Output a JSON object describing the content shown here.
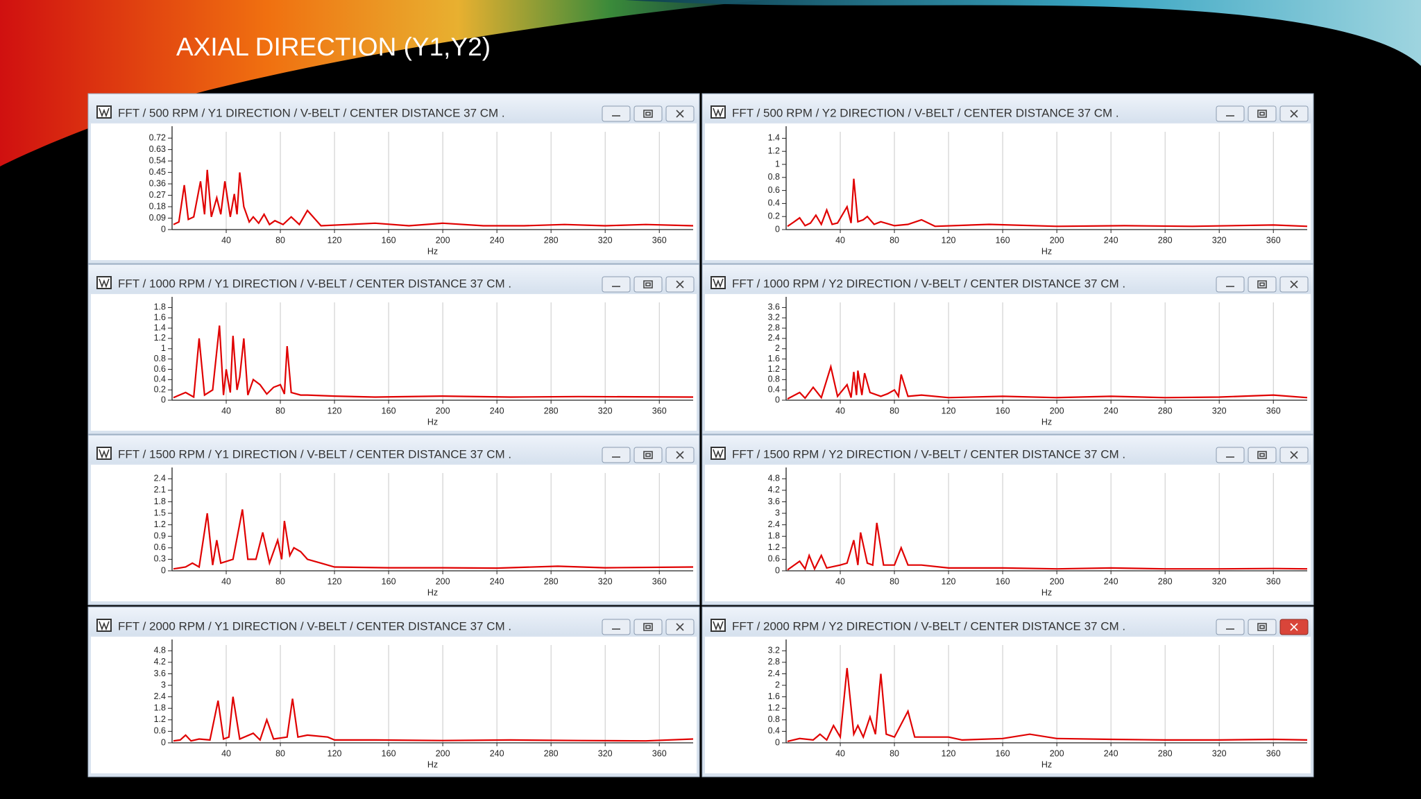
{
  "title": "AXIAL DIRECTION (Y1,Y2)",
  "chart_data": [
    {
      "type": "line",
      "title": "FFT / 500 RPM / Y1 DIRECTION / V-BELT / CENTER DISTANCE 37 CM .",
      "xlabel": "Hz",
      "color": "#e00000",
      "grid": true,
      "xlim": [
        0,
        385
      ],
      "xticks": [
        40,
        80,
        120,
        160,
        200,
        240,
        280,
        320,
        360
      ],
      "ylim": [
        0,
        0.77
      ],
      "yticks": [
        0,
        0.09,
        0.18,
        0.27,
        0.36,
        0.45,
        0.54,
        0.63,
        0.72
      ],
      "x": [
        1,
        5,
        9,
        12,
        16,
        21,
        24,
        26,
        29,
        33,
        36,
        39,
        43,
        46,
        48,
        50,
        53,
        57,
        60,
        64,
        68,
        72,
        76,
        82,
        88,
        94,
        100,
        110,
        130,
        150,
        175,
        200,
        230,
        260,
        290,
        320,
        350,
        385
      ],
      "values": [
        0.04,
        0.06,
        0.35,
        0.08,
        0.1,
        0.38,
        0.12,
        0.47,
        0.1,
        0.25,
        0.12,
        0.38,
        0.1,
        0.28,
        0.12,
        0.45,
        0.18,
        0.06,
        0.1,
        0.05,
        0.12,
        0.04,
        0.07,
        0.04,
        0.1,
        0.04,
        0.15,
        0.03,
        0.04,
        0.05,
        0.03,
        0.05,
        0.03,
        0.03,
        0.04,
        0.03,
        0.04,
        0.03
      ]
    },
    {
      "type": "line",
      "title": "FFT / 500 RPM / Y2 DIRECTION / V-BELT / CENTER DISTANCE 37 CM .",
      "xlabel": "Hz",
      "color": "#e00000",
      "grid": true,
      "xlim": [
        0,
        385
      ],
      "xticks": [
        40,
        80,
        120,
        160,
        200,
        240,
        280,
        320,
        360
      ],
      "ylim": [
        0,
        1.5
      ],
      "yticks": [
        0,
        0.2,
        0.4,
        0.6,
        0.8,
        1,
        1.2,
        1.4
      ],
      "x": [
        1,
        6,
        10,
        14,
        18,
        22,
        26,
        30,
        34,
        38,
        45,
        48,
        50,
        53,
        57,
        60,
        65,
        70,
        80,
        90,
        100,
        110,
        150,
        200,
        250,
        300,
        360,
        385
      ],
      "values": [
        0.05,
        0.12,
        0.18,
        0.06,
        0.1,
        0.22,
        0.08,
        0.3,
        0.08,
        0.1,
        0.35,
        0.1,
        0.78,
        0.12,
        0.15,
        0.2,
        0.08,
        0.12,
        0.06,
        0.08,
        0.15,
        0.05,
        0.08,
        0.05,
        0.06,
        0.05,
        0.07,
        0.05
      ]
    },
    {
      "type": "line",
      "title": "FFT / 1000 RPM / Y1 DIRECTION / V-BELT / CENTER DISTANCE 37 CM .",
      "xlabel": "Hz",
      "color": "#e00000",
      "grid": true,
      "xlim": [
        0,
        385
      ],
      "xticks": [
        40,
        80,
        120,
        160,
        200,
        240,
        280,
        320,
        360
      ],
      "ylim": [
        0,
        1.9
      ],
      "yticks": [
        0,
        0.2,
        0.4,
        0.6,
        0.8,
        1,
        1.2,
        1.4,
        1.6,
        1.8
      ],
      "x": [
        1,
        10,
        16,
        20,
        24,
        30,
        35,
        38,
        40,
        43,
        45,
        48,
        50,
        53,
        56,
        60,
        65,
        70,
        75,
        80,
        83,
        85,
        88,
        95,
        100,
        120,
        150,
        200,
        250,
        300,
        385
      ],
      "values": [
        0.05,
        0.15,
        0.06,
        1.2,
        0.1,
        0.2,
        1.45,
        0.1,
        0.6,
        0.15,
        1.25,
        0.2,
        0.45,
        1.2,
        0.1,
        0.4,
        0.3,
        0.12,
        0.25,
        0.3,
        0.12,
        1.05,
        0.15,
        0.1,
        0.1,
        0.08,
        0.06,
        0.08,
        0.06,
        0.07,
        0.06
      ]
    },
    {
      "type": "line",
      "title": "FFT / 1000 RPM / Y2 DIRECTION / V-BELT / CENTER DISTANCE 37 CM .",
      "xlabel": "Hz",
      "color": "#e00000",
      "grid": true,
      "xlim": [
        0,
        385
      ],
      "xticks": [
        40,
        80,
        120,
        160,
        200,
        240,
        280,
        320,
        360
      ],
      "ylim": [
        0,
        3.8
      ],
      "yticks": [
        0,
        0.4,
        0.8,
        1.2,
        1.6,
        2,
        2.4,
        2.8,
        3.2,
        3.6
      ],
      "x": [
        1,
        10,
        14,
        20,
        26,
        33,
        38,
        45,
        48,
        50,
        52,
        53,
        56,
        58,
        62,
        70,
        75,
        80,
        83,
        85,
        90,
        100,
        120,
        160,
        200,
        240,
        280,
        320,
        360,
        385
      ],
      "values": [
        0.05,
        0.3,
        0.08,
        0.5,
        0.1,
        1.3,
        0.15,
        0.6,
        0.1,
        1.1,
        0.2,
        1.15,
        0.2,
        1.05,
        0.3,
        0.15,
        0.25,
        0.4,
        0.15,
        1.0,
        0.15,
        0.2,
        0.1,
        0.15,
        0.1,
        0.15,
        0.1,
        0.12,
        0.2,
        0.1
      ]
    },
    {
      "type": "line",
      "title": "FFT / 1500 RPM / Y1 DIRECTION / V-BELT / CENTER DISTANCE 37 CM .",
      "xlabel": "Hz",
      "color": "#e00000",
      "grid": true,
      "xlim": [
        0,
        385
      ],
      "xticks": [
        40,
        80,
        120,
        160,
        200,
        240,
        280,
        320,
        360
      ],
      "ylim": [
        0,
        2.55
      ],
      "yticks": [
        0,
        0.3,
        0.6,
        0.9,
        1.2,
        1.5,
        1.8,
        2.1,
        2.4
      ],
      "x": [
        1,
        10,
        15,
        20,
        26,
        30,
        33,
        36,
        45,
        52,
        56,
        62,
        67,
        72,
        78,
        81,
        83,
        87,
        90,
        95,
        100,
        110,
        120,
        160,
        200,
        240,
        285,
        320,
        385
      ],
      "values": [
        0.05,
        0.1,
        0.2,
        0.1,
        1.5,
        0.15,
        0.8,
        0.2,
        0.3,
        1.6,
        0.3,
        0.3,
        1.0,
        0.2,
        0.8,
        0.3,
        1.3,
        0.4,
        0.6,
        0.5,
        0.3,
        0.2,
        0.1,
        0.08,
        0.08,
        0.07,
        0.12,
        0.08,
        0.1
      ]
    },
    {
      "type": "line",
      "title": "FFT / 1500 RPM / Y2 DIRECTION / V-BELT / CENTER DISTANCE 37 CM .",
      "xlabel": "Hz",
      "color": "#e00000",
      "grid": true,
      "xlim": [
        0,
        385
      ],
      "xticks": [
        40,
        80,
        120,
        160,
        200,
        240,
        280,
        320,
        360
      ],
      "ylim": [
        0,
        5.1
      ],
      "yticks": [
        0,
        0.6,
        1.2,
        1.8,
        2.4,
        3,
        3.6,
        4.2,
        4.8
      ],
      "x": [
        1,
        10,
        14,
        17,
        21,
        26,
        30,
        40,
        45,
        50,
        53,
        55,
        60,
        64,
        67,
        72,
        80,
        85,
        90,
        100,
        120,
        160,
        200,
        240,
        280,
        320,
        360,
        385
      ],
      "values": [
        0.05,
        0.5,
        0.1,
        0.8,
        0.1,
        0.8,
        0.15,
        0.3,
        0.4,
        1.6,
        0.3,
        2.0,
        0.4,
        0.3,
        2.5,
        0.3,
        0.3,
        1.2,
        0.3,
        0.3,
        0.15,
        0.15,
        0.1,
        0.15,
        0.1,
        0.1,
        0.12,
        0.1
      ]
    },
    {
      "type": "line",
      "title": "FFT / 2000 RPM / Y1 DIRECTION / V-BELT / CENTER DISTANCE 37 CM .",
      "xlabel": "Hz",
      "color": "#e00000",
      "grid": true,
      "xlim": [
        0,
        385
      ],
      "xticks": [
        40,
        80,
        120,
        160,
        200,
        240,
        280,
        320,
        360
      ],
      "ylim": [
        0,
        5.1
      ],
      "yticks": [
        0,
        0.6,
        1.2,
        1.8,
        2.4,
        3,
        3.6,
        4.2,
        4.8
      ],
      "x": [
        1,
        6,
        10,
        14,
        20,
        28,
        34,
        38,
        42,
        45,
        50,
        60,
        65,
        70,
        75,
        85,
        89,
        93,
        100,
        115,
        120,
        150,
        200,
        250,
        300,
        350,
        385
      ],
      "values": [
        0.1,
        0.15,
        0.4,
        0.1,
        0.2,
        0.15,
        2.2,
        0.2,
        0.3,
        2.4,
        0.2,
        0.5,
        0.15,
        1.2,
        0.2,
        0.3,
        2.3,
        0.3,
        0.4,
        0.3,
        0.15,
        0.15,
        0.12,
        0.15,
        0.12,
        0.1,
        0.2
      ]
    },
    {
      "type": "line",
      "title": "FFT / 2000 RPM / Y2 DIRECTION / V-BELT / CENTER DISTANCE 37 CM .",
      "xlabel": "Hz",
      "color": "#e00000",
      "grid": true,
      "xlim": [
        0,
        385
      ],
      "xticks": [
        40,
        80,
        120,
        160,
        200,
        240,
        280,
        320,
        360
      ],
      "ylim": [
        0,
        3.4
      ],
      "yticks": [
        0,
        0.4,
        0.8,
        1.2,
        1.6,
        2,
        2.4,
        2.8,
        3.2
      ],
      "x": [
        1,
        10,
        20,
        25,
        30,
        35,
        40,
        45,
        50,
        53,
        57,
        62,
        66,
        70,
        74,
        80,
        90,
        95,
        100,
        120,
        130,
        160,
        180,
        200,
        240,
        280,
        320,
        360,
        385
      ],
      "values": [
        0.05,
        0.15,
        0.1,
        0.3,
        0.1,
        0.6,
        0.2,
        2.6,
        0.3,
        0.6,
        0.2,
        0.9,
        0.3,
        2.4,
        0.3,
        0.2,
        1.1,
        0.2,
        0.2,
        0.2,
        0.1,
        0.15,
        0.3,
        0.15,
        0.12,
        0.1,
        0.1,
        0.12,
        0.1
      ]
    }
  ]
}
